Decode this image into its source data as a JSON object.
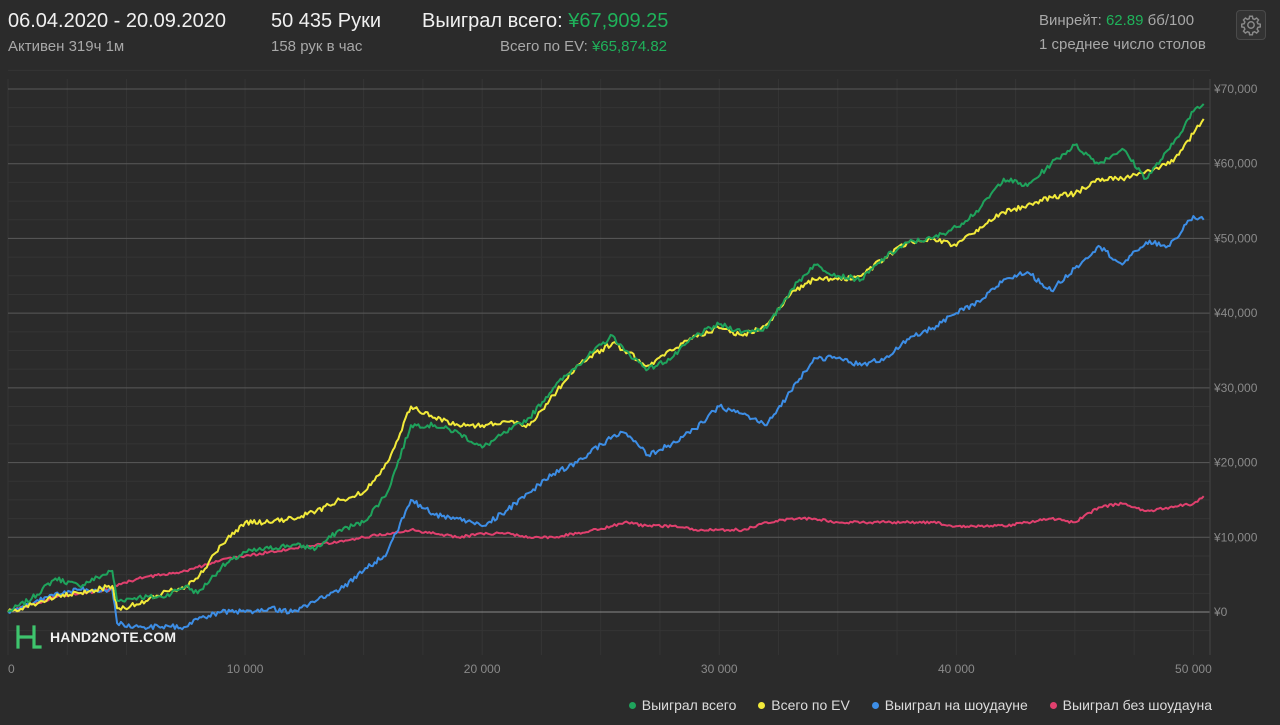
{
  "header": {
    "date_range": "06.04.2020 - 20.09.2020",
    "active_time": "Активен 319ч 1м",
    "hands": "50 435 Руки",
    "hands_per_hour": "158 рук в час",
    "won_total_label": "Выиграл всего:",
    "won_total_value": "¥67,909.25",
    "ev_total_label": "Всего по EV:",
    "ev_total_value": "¥65,874.82",
    "winrate_label": "Винрейт:",
    "winrate_value": "62.89",
    "winrate_unit": "бб/100",
    "avg_tables": "1 среднее число столов"
  },
  "logo": {
    "text": "HAND2NOTE.COM",
    "icon": "hand2note-logo-icon"
  },
  "settings_icon": "gear-icon",
  "colors": {
    "background": "#2b2b2b",
    "grid_major": "#5a5a5a",
    "grid_minor": "#353535",
    "axis_text": "#8a8a8a",
    "accent_green": "#1fb25a"
  },
  "chart_data": {
    "type": "line",
    "title": "",
    "xlabel": "",
    "ylabel": "",
    "xlim": [
      0,
      50435
    ],
    "ylim": [
      -2000,
      72000
    ],
    "x_ticks": [
      0,
      10000,
      20000,
      30000,
      40000,
      50000
    ],
    "x_tick_labels": [
      "0",
      "10 000",
      "20 000",
      "30 000",
      "40 000",
      "50 000"
    ],
    "y_ticks": [
      0,
      10000,
      20000,
      30000,
      40000,
      50000,
      60000,
      70000
    ],
    "y_tick_labels": [
      "¥0",
      "¥10,000",
      "¥20,000",
      "¥30,000",
      "¥40,000",
      "¥50,000",
      "¥60,000",
      "¥70,000"
    ],
    "y_axis_position": "right",
    "grid": true,
    "legend_position": "bottom-right",
    "series": [
      {
        "name": "Выиграл всего",
        "color": "#1fa35c",
        "points": [
          [
            0,
            0
          ],
          [
            1000,
            1800
          ],
          [
            2000,
            4500
          ],
          [
            3000,
            3500
          ],
          [
            4400,
            5500
          ],
          [
            4600,
            1500
          ],
          [
            5500,
            2000
          ],
          [
            6500,
            2000
          ],
          [
            7500,
            3500
          ],
          [
            8000,
            2500
          ],
          [
            9000,
            6000
          ],
          [
            10000,
            8000
          ],
          [
            11000,
            8500
          ],
          [
            12000,
            9000
          ],
          [
            13000,
            8500
          ],
          [
            14000,
            11000
          ],
          [
            15000,
            12000
          ],
          [
            16000,
            16000
          ],
          [
            17000,
            25000
          ],
          [
            18000,
            25000
          ],
          [
            19000,
            24000
          ],
          [
            20000,
            22000
          ],
          [
            21000,
            24000
          ],
          [
            22000,
            26000
          ],
          [
            23000,
            30000
          ],
          [
            24000,
            33000
          ],
          [
            25500,
            37000
          ],
          [
            26000,
            35000
          ],
          [
            27000,
            32500
          ],
          [
            28000,
            34000
          ],
          [
            29000,
            37000
          ],
          [
            30000,
            38500
          ],
          [
            31000,
            37500
          ],
          [
            32000,
            38000
          ],
          [
            33000,
            43000
          ],
          [
            34000,
            46500
          ],
          [
            35000,
            45000
          ],
          [
            36000,
            44500
          ],
          [
            37000,
            47500
          ],
          [
            38000,
            49500
          ],
          [
            39000,
            50000
          ],
          [
            40000,
            51500
          ],
          [
            41000,
            54000
          ],
          [
            42000,
            58000
          ],
          [
            43000,
            57000
          ],
          [
            44000,
            60000
          ],
          [
            45000,
            62500
          ],
          [
            46000,
            60000
          ],
          [
            47000,
            62000
          ],
          [
            48000,
            58000
          ],
          [
            49000,
            62000
          ],
          [
            50000,
            67000
          ],
          [
            50435,
            68000
          ]
        ]
      },
      {
        "name": "Всего по EV",
        "color": "#f2ea3a",
        "points": [
          [
            0,
            0
          ],
          [
            1000,
            1000
          ],
          [
            2000,
            2000
          ],
          [
            3000,
            2500
          ],
          [
            4400,
            3500
          ],
          [
            4600,
            500
          ],
          [
            5500,
            1000
          ],
          [
            6500,
            2500
          ],
          [
            7500,
            3500
          ],
          [
            8000,
            4500
          ],
          [
            9000,
            9000
          ],
          [
            10000,
            12000
          ],
          [
            11000,
            12000
          ],
          [
            12000,
            12500
          ],
          [
            13000,
            13500
          ],
          [
            14000,
            15000
          ],
          [
            15000,
            16000
          ],
          [
            16000,
            20000
          ],
          [
            17000,
            27500
          ],
          [
            18000,
            26000
          ],
          [
            19000,
            25000
          ],
          [
            20000,
            25000
          ],
          [
            21000,
            25500
          ],
          [
            22000,
            25000
          ],
          [
            23000,
            29000
          ],
          [
            24000,
            33000
          ],
          [
            25500,
            36000
          ],
          [
            26000,
            35000
          ],
          [
            27000,
            33000
          ],
          [
            28000,
            35000
          ],
          [
            29000,
            37000
          ],
          [
            30000,
            38000
          ],
          [
            31000,
            37000
          ],
          [
            32000,
            38500
          ],
          [
            33000,
            42500
          ],
          [
            34000,
            44500
          ],
          [
            35000,
            44500
          ],
          [
            36000,
            45000
          ],
          [
            37000,
            47500
          ],
          [
            38000,
            49500
          ],
          [
            39000,
            50000
          ],
          [
            40000,
            49000
          ],
          [
            41000,
            51500
          ],
          [
            42000,
            53500
          ],
          [
            43000,
            54500
          ],
          [
            44000,
            55500
          ],
          [
            45000,
            56000
          ],
          [
            46000,
            58000
          ],
          [
            47000,
            58000
          ],
          [
            48000,
            59000
          ],
          [
            49000,
            60000
          ],
          [
            50000,
            64000
          ],
          [
            50435,
            66000
          ]
        ]
      },
      {
        "name": "Выиграл на шоудауне",
        "color": "#3d8ee6",
        "points": [
          [
            0,
            0
          ],
          [
            1000,
            1000
          ],
          [
            2000,
            2500
          ],
          [
            3000,
            3000
          ],
          [
            4400,
            3000
          ],
          [
            4600,
            -1500
          ],
          [
            5500,
            -2000
          ],
          [
            6500,
            -2000
          ],
          [
            7500,
            -2000
          ],
          [
            8000,
            -1000
          ],
          [
            9000,
            0
          ],
          [
            10000,
            0
          ],
          [
            11000,
            500
          ],
          [
            12000,
            0
          ],
          [
            13000,
            1500
          ],
          [
            14000,
            3000
          ],
          [
            15000,
            5500
          ],
          [
            16000,
            8000
          ],
          [
            17000,
            15000
          ],
          [
            18000,
            13000
          ],
          [
            19000,
            12500
          ],
          [
            20000,
            11500
          ],
          [
            21000,
            13500
          ],
          [
            22000,
            16000
          ],
          [
            23000,
            18500
          ],
          [
            24000,
            20000
          ],
          [
            25500,
            23500
          ],
          [
            26000,
            24000
          ],
          [
            27000,
            21000
          ],
          [
            28000,
            22500
          ],
          [
            29000,
            24500
          ],
          [
            30000,
            27500
          ],
          [
            31000,
            26500
          ],
          [
            32000,
            25000
          ],
          [
            33000,
            29500
          ],
          [
            34000,
            34000
          ],
          [
            35000,
            34000
          ],
          [
            36000,
            33000
          ],
          [
            37000,
            34000
          ],
          [
            38000,
            36500
          ],
          [
            39000,
            38000
          ],
          [
            40000,
            40000
          ],
          [
            41000,
            41500
          ],
          [
            42000,
            44500
          ],
          [
            43000,
            45500
          ],
          [
            44000,
            43000
          ],
          [
            45000,
            46000
          ],
          [
            46000,
            49000
          ],
          [
            47000,
            46500
          ],
          [
            48000,
            49500
          ],
          [
            49000,
            49000
          ],
          [
            50000,
            53000
          ],
          [
            50435,
            52500
          ]
        ]
      },
      {
        "name": "Выиграл без шоудауна",
        "color": "#e0406e",
        "points": [
          [
            0,
            0
          ],
          [
            1000,
            1000
          ],
          [
            2000,
            2000
          ],
          [
            3000,
            2500
          ],
          [
            4400,
            3000
          ],
          [
            4600,
            3500
          ],
          [
            5500,
            4500
          ],
          [
            6500,
            5000
          ],
          [
            7500,
            5500
          ],
          [
            8000,
            6000
          ],
          [
            9000,
            7000
          ],
          [
            10000,
            7500
          ],
          [
            11000,
            8000
          ],
          [
            12000,
            8500
          ],
          [
            13000,
            9000
          ],
          [
            14000,
            9500
          ],
          [
            15000,
            10000
          ],
          [
            16000,
            10500
          ],
          [
            17000,
            11000
          ],
          [
            18000,
            10500
          ],
          [
            19000,
            10000
          ],
          [
            20000,
            10500
          ],
          [
            21000,
            10500
          ],
          [
            22000,
            10000
          ],
          [
            23000,
            10000
          ],
          [
            24000,
            10500
          ],
          [
            25500,
            11500
          ],
          [
            26000,
            12000
          ],
          [
            27000,
            11500
          ],
          [
            28000,
            11500
          ],
          [
            29000,
            11000
          ],
          [
            30000,
            11000
          ],
          [
            31000,
            11000
          ],
          [
            32000,
            12000
          ],
          [
            33000,
            12500
          ],
          [
            34000,
            12500
          ],
          [
            35000,
            12000
          ],
          [
            36000,
            12000
          ],
          [
            37000,
            12000
          ],
          [
            38000,
            12000
          ],
          [
            39000,
            12000
          ],
          [
            40000,
            11500
          ],
          [
            41000,
            11500
          ],
          [
            42000,
            11500
          ],
          [
            43000,
            12000
          ],
          [
            44000,
            12500
          ],
          [
            45000,
            12000
          ],
          [
            46000,
            14000
          ],
          [
            47000,
            14500
          ],
          [
            48000,
            13500
          ],
          [
            49000,
            14000
          ],
          [
            50000,
            14500
          ],
          [
            50435,
            15500
          ]
        ]
      }
    ]
  }
}
